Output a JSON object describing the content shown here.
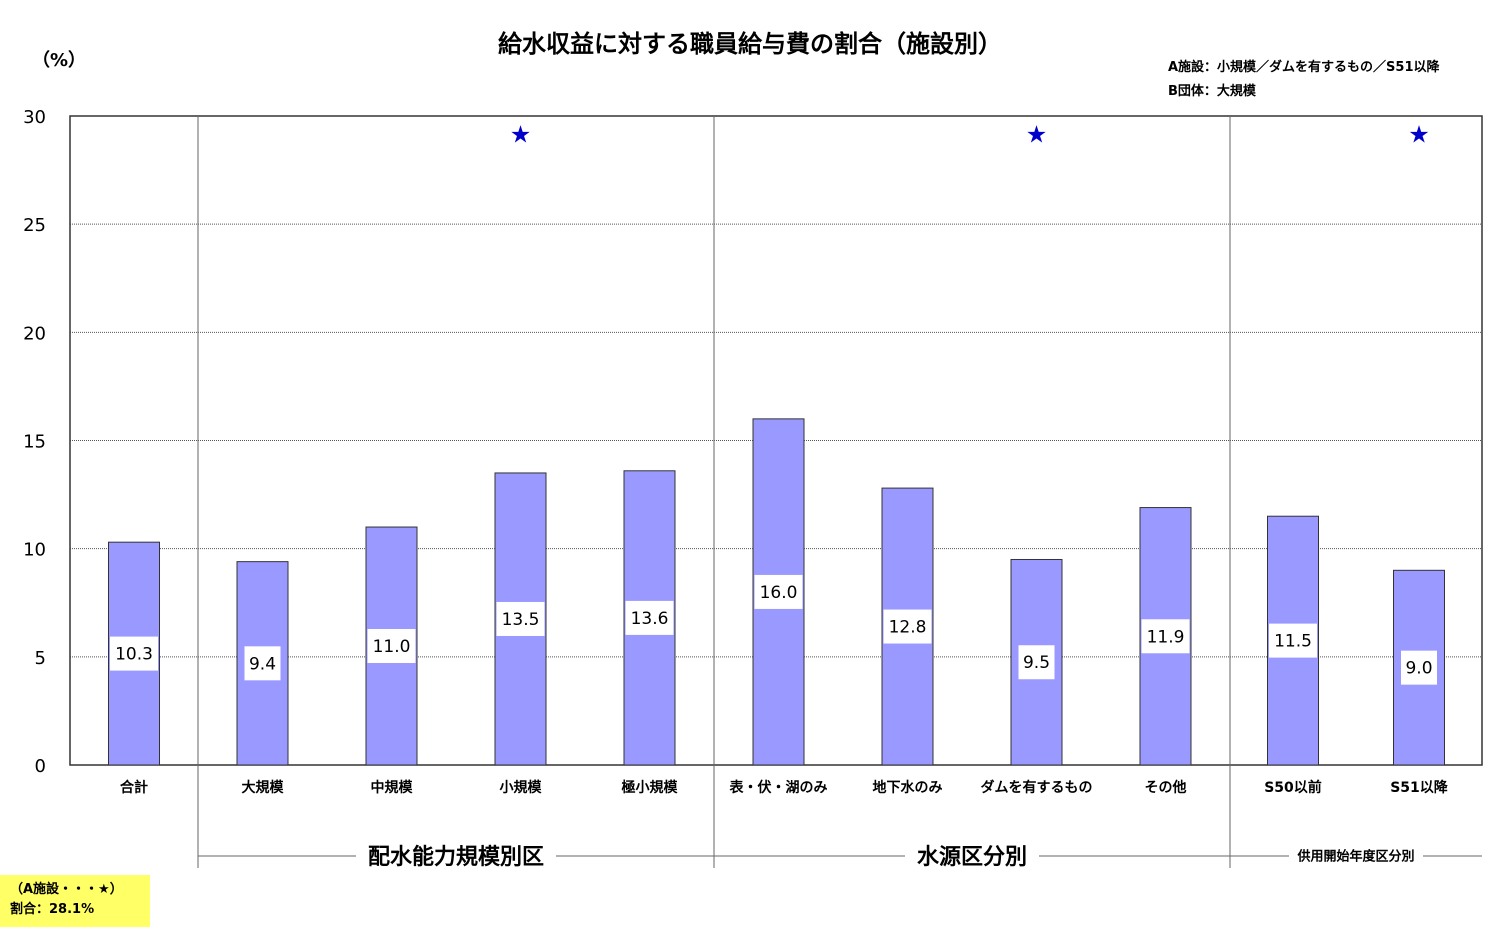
{
  "chart_data": {
    "type": "bar",
    "title": "給水収益に対する職員給与費の割合（施設別）",
    "unit_label": "（%）",
    "ylim": [
      0,
      30
    ],
    "yticks": [
      0,
      5,
      10,
      15,
      20,
      25,
      30
    ],
    "grid": true,
    "categories": [
      "合計",
      "大規模",
      "中規模",
      "小規模",
      "極小規模",
      "表・伏・湖のみ",
      "地下水のみ",
      "ダムを有するもの",
      "その他",
      "S50以前",
      "S51以降"
    ],
    "values": [
      10.3,
      9.4,
      11.0,
      13.5,
      13.6,
      16.0,
      12.8,
      9.5,
      11.9,
      11.5,
      9.0
    ],
    "value_labels": [
      "10.3",
      "9.4",
      "11.0",
      "13.5",
      "13.6",
      "16.0",
      "12.8",
      "9.5",
      "11.9",
      "11.5",
      "9.0"
    ],
    "groups": [
      {
        "label": "配水能力規模別区",
        "categories": [
          "大規模",
          "中規模",
          "小規模",
          "極小規模"
        ]
      },
      {
        "label": "水源区分別",
        "categories": [
          "表・伏・湖のみ",
          "地下水のみ",
          "ダムを有するもの",
          "その他"
        ]
      },
      {
        "label": "供用開始年度区分別",
        "categories": [
          "S50以前",
          "S51以降"
        ]
      }
    ],
    "star_markers": [
      "小規模",
      "ダムを有するもの",
      "S51以降"
    ],
    "star_value": 29.2,
    "bar_color": "#9999ff",
    "star_color": "#0000cc"
  },
  "legend_note": [
    "A施設：小規模／ダムを有するもの／S51以降",
    "B団体：大規模"
  ],
  "note_box": {
    "line1": "（A施設・・・★）",
    "line2": "割合：28.1%",
    "color": "#ffff66"
  }
}
